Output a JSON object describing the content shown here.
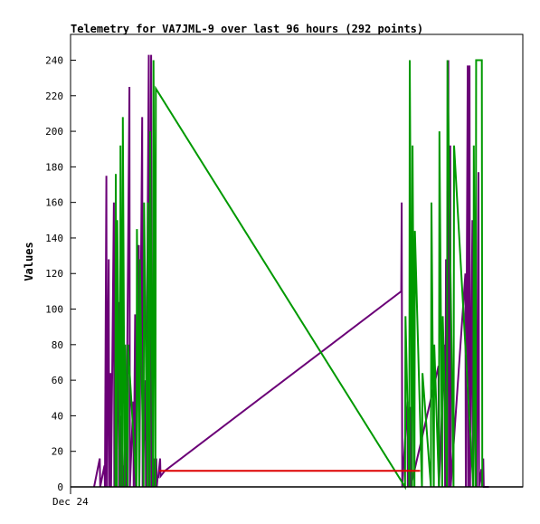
{
  "chart_data": {
    "type": "line",
    "title": "Telemetry for VA7JML-9 over last 96 hours (292 points)",
    "ylabel": "Values",
    "xlabel": "",
    "x_tick_labels": [
      "Dec 24"
    ],
    "ylim": [
      0,
      240
    ],
    "y_ticks": [
      0,
      20,
      40,
      60,
      80,
      100,
      120,
      140,
      160,
      180,
      200,
      220,
      240
    ],
    "grid": false,
    "x_unit": "hours since start of window",
    "colors": {
      "purple": "#6b0077",
      "green": "#009900",
      "red": "#dd0000",
      "black": "#000000"
    },
    "series": [
      {
        "color": "purple",
        "x": [
          5,
          6.2,
          6.3,
          7.2,
          7.3,
          7.6,
          7.7,
          8.1,
          8.2,
          8.5,
          8.6,
          9.2,
          9.3,
          9.6,
          9.7,
          10.2,
          10.3,
          10.6,
          10.7,
          11.1,
          11.2,
          11.7,
          11.8,
          12.5,
          12.6,
          13.3,
          13.4,
          13.7,
          13.8,
          14.5,
          14.6,
          15.2,
          15.3,
          15.9,
          16.0,
          16.6,
          16.7,
          17.1,
          17.2,
          17.7,
          17.8,
          18.2,
          18.3,
          18.5,
          18.6,
          19.0,
          19.1,
          20.0,
          70.2,
          70.3,
          70.4,
          71.5,
          71.6,
          72.1,
          72.2,
          78.1,
          78.2,
          79.4,
          79.5,
          79.7,
          79.8,
          80.2,
          80.3,
          80.6,
          80.7,
          83.8,
          83.9,
          84.3,
          84.4,
          84.7,
          84.8,
          85.3,
          85.4,
          86.1,
          86.2,
          86.6,
          86.7,
          87.2,
          87.3,
          87.6,
          87.7,
          88.8
        ],
        "y": [
          0,
          16,
          0,
          12,
          0,
          175,
          0,
          128,
          0,
          64,
          0,
          160,
          0,
          64,
          0,
          104,
          0,
          40,
          0,
          12,
          0,
          32,
          0,
          225,
          0,
          48,
          0,
          97,
          0,
          136,
          0,
          208,
          0,
          60,
          0,
          243,
          0,
          243,
          0,
          16,
          0,
          16,
          0,
          6,
          5,
          16,
          6,
          9,
          110,
          160,
          0,
          48,
          0,
          45,
          0,
          68,
          0,
          80,
          0,
          128,
          0,
          240,
          0,
          192,
          0,
          120,
          0,
          237,
          0,
          237,
          0,
          150,
          0,
          88,
          0,
          177,
          0,
          10,
          0,
          16,
          0,
          0
        ]
      },
      {
        "color": "green",
        "x": [
          9.5,
          9.6,
          9.8,
          9.9,
          10.5,
          10.6,
          11.0,
          11.1,
          11.5,
          11.6,
          12.1,
          12.2,
          14.0,
          14.1,
          14.6,
          14.7,
          15.5,
          15.6,
          16.3,
          16.4,
          16.8,
          16.9,
          17.5,
          17.6,
          18.0,
          18.1,
          71.0,
          71.1,
          71.9,
          72.0,
          72.5,
          72.6,
          73.0,
          73.1,
          74.6,
          74.7,
          76.5,
          76.6,
          77.1,
          77.2,
          78.2,
          78.3,
          78.9,
          79.0,
          79.9,
          80.0,
          81.3,
          81.4,
          85.5,
          85.6,
          86.0,
          86.1,
          87.3,
          87.4
        ],
        "y": [
          0,
          176,
          0,
          150,
          0,
          192,
          0,
          208,
          0,
          80,
          0,
          80,
          0,
          145,
          0,
          128,
          0,
          160,
          0,
          160,
          0,
          200,
          0,
          240,
          0,
          224,
          0,
          96,
          0,
          240,
          0,
          192,
          0,
          144,
          0,
          64,
          0,
          160,
          0,
          80,
          0,
          200,
          0,
          96,
          0,
          240,
          0,
          192,
          0,
          192,
          0,
          240,
          240,
          0
        ]
      },
      {
        "color": "red",
        "x": [
          18.8,
          74.2
        ],
        "y": [
          9,
          9
        ]
      },
      {
        "color": "black",
        "x": [
          0,
          96
        ],
        "y": [
          0,
          0
        ]
      }
    ]
  }
}
